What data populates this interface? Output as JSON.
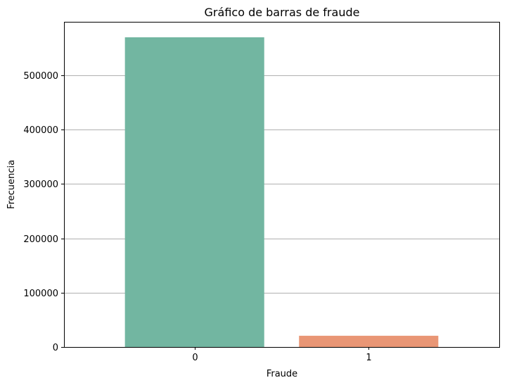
{
  "chart_data": {
    "type": "bar",
    "title": "Gráfico de barras de fraude",
    "xlabel": "Fraude",
    "ylabel": "Frecuencia",
    "categories": [
      "0",
      "1"
    ],
    "values": [
      569877,
      20663
    ],
    "colors": [
      "#72b6a1",
      "#e99675"
    ],
    "ylim": [
      0,
      598371
    ],
    "yticks": [
      0,
      100000,
      200000,
      300000,
      400000,
      500000
    ],
    "ytick_labels": [
      "0",
      "100000",
      "200000",
      "300000",
      "400000",
      "500000"
    ],
    "grid": "horizontal",
    "gridline_color": "#b0b0b0"
  }
}
